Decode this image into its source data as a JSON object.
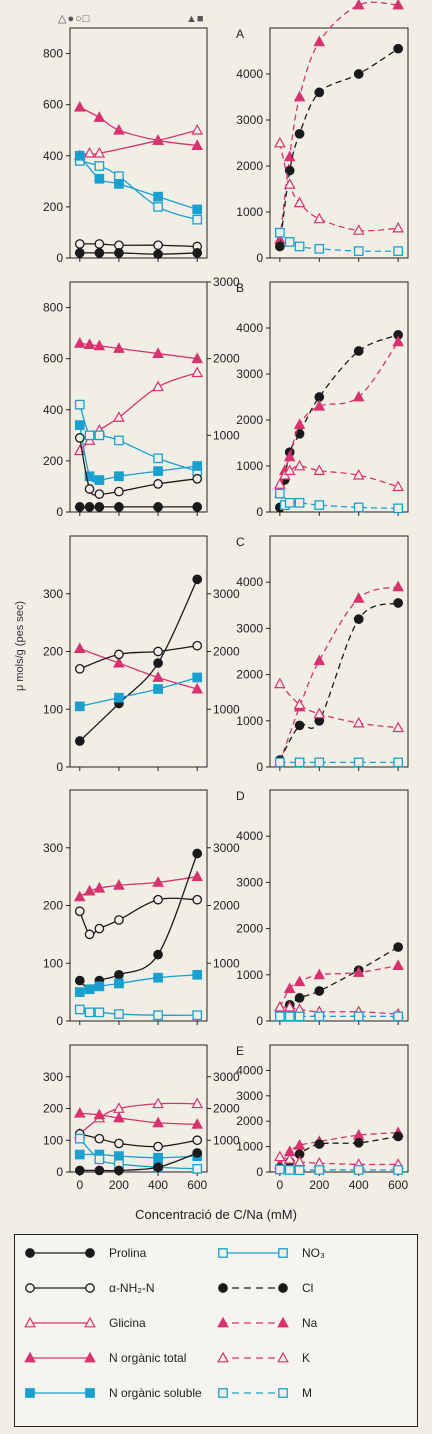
{
  "top_markers": {
    "left": "△●○□",
    "right": "▲■"
  },
  "x_axis_title": "Concentració de C/Na (mM)",
  "y_axis_title": "μ mols/g (pes sec)",
  "legend": [
    {
      "label": "Prolina",
      "style": "filled-circle-solid-black"
    },
    {
      "label": "α-NH₂-N",
      "style": "open-circle-solid-black"
    },
    {
      "label": "Glicina",
      "style": "open-triangle-solid-pink"
    },
    {
      "label": "N orgànic total",
      "style": "filled-triangle-solid-pink"
    },
    {
      "label": "N orgànic soluble",
      "style": "filled-square-solid-blue"
    },
    {
      "label": "NO₃",
      "style": "open-square-solid-blue"
    },
    {
      "label": "Cl",
      "style": "filled-circle-dashed-black"
    },
    {
      "label": "Na",
      "style": "filled-triangle-dashed-pink"
    },
    {
      "label": "K",
      "style": "open-triangle-dashed-pink"
    },
    {
      "label": "M",
      "style": "open-square-dashed-blue"
    }
  ],
  "colors": {
    "black": "#1a1a1a",
    "pink": "#d8336e",
    "blue": "#1aa0d0",
    "background": "#f1eee6"
  },
  "chart_data": [
    {
      "type": "line",
      "panel": "A-left",
      "x": [
        0,
        50,
        100,
        200,
        400,
        600
      ],
      "xlim": [
        -50,
        650
      ],
      "ylim": [
        0,
        900
      ],
      "yticks_left": [
        0,
        200,
        400,
        600,
        800
      ],
      "series": [
        {
          "name": "Glicina",
          "values": [
            400,
            410,
            410,
            null,
            460,
            500
          ]
        },
        {
          "name": "N orgànic total",
          "values": [
            590,
            null,
            550,
            500,
            460,
            440
          ]
        },
        {
          "name": "NO₃",
          "values": [
            380,
            null,
            360,
            320,
            200,
            150
          ]
        },
        {
          "name": "N orgànic soluble",
          "values": [
            400,
            null,
            310,
            290,
            240,
            190
          ]
        },
        {
          "name": "α-NH₂-N",
          "values": [
            55,
            null,
            55,
            50,
            50,
            45
          ]
        },
        {
          "name": "Prolina",
          "values": [
            20,
            null,
            20,
            20,
            15,
            20
          ]
        }
      ]
    },
    {
      "type": "line",
      "panel": "A-right",
      "label": "A",
      "x": [
        0,
        50,
        100,
        200,
        400,
        600
      ],
      "xlim": [
        -50,
        650
      ],
      "ylim": [
        0,
        5000
      ],
      "yticks_left": [
        0,
        1000,
        2000,
        3000,
        4000
      ],
      "series": [
        {
          "name": "Na",
          "values": [
            400,
            2200,
            3500,
            4700,
            5500,
            5500
          ]
        },
        {
          "name": "Cl",
          "values": [
            250,
            1900,
            2700,
            3600,
            4000,
            4550
          ]
        },
        {
          "name": "K",
          "values": [
            2500,
            1600,
            1200,
            850,
            600,
            650
          ]
        },
        {
          "name": "M",
          "values": [
            550,
            350,
            250,
            200,
            150,
            150
          ]
        }
      ]
    },
    {
      "type": "line",
      "panel": "B-left",
      "x": [
        0,
        50,
        100,
        200,
        400,
        600
      ],
      "xlim": [
        -50,
        650
      ],
      "ylim": [
        0,
        900
      ],
      "yticks_left": [
        0,
        200,
        400,
        600,
        800
      ],
      "yticks_right": [
        1000,
        2000,
        3000
      ],
      "series": [
        {
          "name": "N orgànic total",
          "values": [
            660,
            655,
            650,
            640,
            620,
            600
          ]
        },
        {
          "name": "Glicina",
          "values": [
            240,
            280,
            320,
            370,
            490,
            545
          ]
        },
        {
          "name": "NO₃",
          "values": [
            420,
            300,
            300,
            280,
            210,
            160
          ]
        },
        {
          "name": "N orgànic soluble",
          "values": [
            340,
            140,
            125,
            140,
            160,
            180
          ]
        },
        {
          "name": "α-NH₂-N",
          "values": [
            290,
            90,
            70,
            80,
            110,
            130
          ]
        },
        {
          "name": "Prolina",
          "values": [
            20,
            20,
            20,
            20,
            20,
            20
          ]
        }
      ]
    },
    {
      "type": "line",
      "panel": "B-right",
      "label": "B",
      "x": [
        0,
        25,
        50,
        100,
        200,
        400,
        600
      ],
      "xlim": [
        -50,
        650
      ],
      "ylim": [
        0,
        5000
      ],
      "yticks_left": [
        0,
        1000,
        2000,
        3000,
        4000
      ],
      "series": [
        {
          "name": "Cl",
          "values": [
            100,
            700,
            1300,
            1700,
            2500,
            3500,
            3850
          ]
        },
        {
          "name": "Na",
          "values": [
            400,
            900,
            1200,
            1900,
            2300,
            2500,
            3700
          ]
        },
        {
          "name": "K",
          "values": [
            600,
            800,
            900,
            1000,
            900,
            800,
            550
          ]
        },
        {
          "name": "M",
          "values": [
            400,
            150,
            200,
            200,
            150,
            100,
            80
          ]
        }
      ]
    },
    {
      "type": "line",
      "panel": "C-left",
      "x": [
        0,
        200,
        400,
        600
      ],
      "xlim": [
        -50,
        650
      ],
      "ylim": [
        0,
        400
      ],
      "yticks_left": [
        0,
        100,
        200,
        300
      ],
      "yticks_right": [
        1000,
        2000,
        3000
      ],
      "series": [
        {
          "name": "N orgànic total",
          "values": [
            205,
            180,
            155,
            135
          ]
        },
        {
          "name": "α-NH₂-N",
          "values": [
            170,
            195,
            200,
            210
          ]
        },
        {
          "name": "Prolina",
          "values": [
            45,
            110,
            180,
            325
          ]
        },
        {
          "name": "N orgànic soluble",
          "values": [
            105,
            120,
            135,
            155
          ]
        }
      ]
    },
    {
      "type": "line",
      "panel": "C-right",
      "label": "C",
      "x": [
        0,
        100,
        200,
        400,
        600
      ],
      "xlim": [
        -50,
        650
      ],
      "ylim": [
        0,
        5000
      ],
      "yticks_left": [
        0,
        1000,
        2000,
        3000,
        4000
      ],
      "series": [
        {
          "name": "Na",
          "values": [
            100,
            1300,
            2300,
            3650,
            3900
          ]
        },
        {
          "name": "Cl",
          "values": [
            150,
            900,
            1000,
            3200,
            3550
          ]
        },
        {
          "name": "K",
          "values": [
            1800,
            1350,
            1150,
            950,
            850
          ]
        },
        {
          "name": "M",
          "values": [
            100,
            100,
            100,
            100,
            100
          ]
        }
      ]
    },
    {
      "type": "line",
      "panel": "D-left",
      "x": [
        0,
        50,
        100,
        200,
        400,
        600
      ],
      "xlim": [
        -50,
        650
      ],
      "ylim": [
        0,
        400
      ],
      "yticks_left": [
        0,
        100,
        200,
        300
      ],
      "yticks_right": [
        1000,
        2000,
        3000
      ],
      "series": [
        {
          "name": "N orgànic total",
          "values": [
            215,
            225,
            230,
            235,
            240,
            250
          ]
        },
        {
          "name": "α-NH₂-N",
          "values": [
            190,
            150,
            160,
            175,
            210,
            210
          ]
        },
        {
          "name": "Prolina",
          "values": [
            70,
            55,
            70,
            80,
            115,
            290
          ]
        },
        {
          "name": "N orgànic soluble",
          "values": [
            50,
            55,
            60,
            65,
            75,
            80
          ]
        },
        {
          "name": "NO₃",
          "values": [
            20,
            15,
            15,
            12,
            10,
            10
          ]
        }
      ]
    },
    {
      "type": "line",
      "panel": "D-right",
      "label": "D",
      "x": [
        0,
        50,
        100,
        200,
        400,
        600
      ],
      "xlim": [
        -50,
        650
      ],
      "ylim": [
        0,
        5000
      ],
      "yticks_left": [
        0,
        1000,
        2000,
        3000,
        4000
      ],
      "series": [
        {
          "name": "Cl",
          "values": [
            150,
            350,
            500,
            650,
            1100,
            1600
          ]
        },
        {
          "name": "Na",
          "values": [
            300,
            700,
            850,
            1000,
            1050,
            1200
          ]
        },
        {
          "name": "K",
          "values": [
            300,
            300,
            250,
            200,
            200,
            150
          ]
        },
        {
          "name": "M",
          "values": [
            100,
            100,
            100,
            100,
            100,
            100
          ]
        }
      ]
    },
    {
      "type": "line",
      "panel": "E-left",
      "x": [
        0,
        100,
        200,
        400,
        600
      ],
      "xlim": [
        -50,
        650
      ],
      "ylim": [
        0,
        400
      ],
      "yticks_left": [
        0,
        100,
        200,
        300
      ],
      "yticks_right": [
        1000,
        2000,
        3000
      ],
      "xticks": [
        0,
        200,
        400,
        600
      ],
      "series": [
        {
          "name": "Glicina",
          "values": [
            120,
            170,
            200,
            215,
            215
          ]
        },
        {
          "name": "N orgànic total",
          "values": [
            185,
            180,
            170,
            155,
            150
          ]
        },
        {
          "name": "α-NH₂-N",
          "values": [
            120,
            105,
            90,
            80,
            100
          ]
        },
        {
          "name": "N orgànic soluble",
          "values": [
            55,
            55,
            50,
            45,
            50
          ]
        },
        {
          "name": "NO₃",
          "values": [
            105,
            40,
            25,
            15,
            10
          ]
        },
        {
          "name": "Prolina",
          "values": [
            5,
            5,
            5,
            15,
            60
          ]
        }
      ]
    },
    {
      "type": "line",
      "panel": "E-right",
      "label": "E",
      "x": [
        0,
        50,
        100,
        200,
        400,
        600
      ],
      "xlim": [
        -50,
        650
      ],
      "ylim": [
        0,
        5000
      ],
      "yticks_left": [
        0,
        1000,
        2000,
        3000,
        4000
      ],
      "xticks": [
        0,
        200,
        400,
        600
      ],
      "series": [
        {
          "name": "Na",
          "values": [
            300,
            800,
            1050,
            1200,
            1450,
            1550
          ]
        },
        {
          "name": "Cl",
          "values": [
            150,
            400,
            700,
            1100,
            1150,
            1400
          ]
        },
        {
          "name": "K",
          "values": [
            600,
            500,
            400,
            350,
            300,
            300
          ]
        },
        {
          "name": "M",
          "values": [
            100,
            80,
            70,
            80,
            80,
            80
          ]
        }
      ]
    }
  ]
}
